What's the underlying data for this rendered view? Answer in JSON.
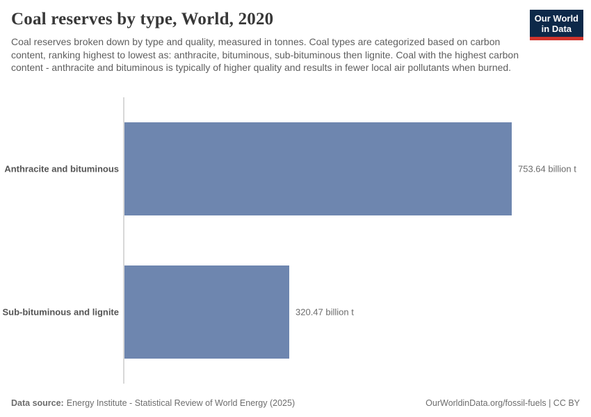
{
  "header": {
    "title": "Coal reserves by type, World, 2020",
    "subtitle": "Coal reserves broken down by type and quality, measured in tonnes. Coal types are categorized based on carbon content, ranking highest to lowest as: anthracite, bituminous, sub-bituminous then lignite. Coal with the highest carbon content - anthracite and bituminous is typically of higher quality and results in fewer local air pollutants when burned."
  },
  "logo": {
    "line1": "Our World",
    "line2": "in Data",
    "bg_color": "#0d2949",
    "accent_color": "#d0342c"
  },
  "chart_data": {
    "type": "bar",
    "orientation": "horizontal",
    "title": "Coal reserves by type, World, 2020",
    "categories": [
      "Anthracite and bituminous",
      "Sub-bituminous and lignite"
    ],
    "values": [
      753.64,
      320.47
    ],
    "value_labels": [
      "753.64 billion t",
      "320.47 billion t"
    ],
    "unit": "billion t",
    "xlim": [
      0,
      753.64
    ],
    "grid": false,
    "legend": "none",
    "bar_color": "#6e86af",
    "axis_color": "#d8d8d8"
  },
  "footer": {
    "source_label": "Data source:",
    "source_text": "Energy Institute - Statistical Review of World Energy (2025)",
    "attribution": "OurWorldinData.org/fossil-fuels | CC BY"
  }
}
